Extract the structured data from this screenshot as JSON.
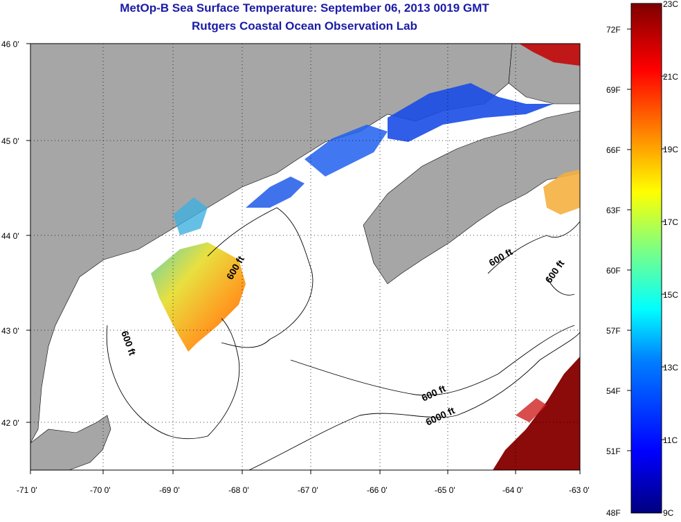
{
  "title": "MetOp-B Sea Surface Temperature:  September 06, 2013 0019 GMT",
  "subtitle": "Rutgers Coastal Ocean Observation Lab",
  "axes": {
    "x_ticks": [
      "-71 0'",
      "-70 0'",
      "-69 0'",
      "-68 0'",
      "-67 0'",
      "-66 0'",
      "-65 0'",
      "-64 0'",
      "-63 0'"
    ],
    "y_ticks": [
      "46 0'",
      "45 0'",
      "44 0'",
      "43 0'",
      "42 0'"
    ]
  },
  "contours": [
    "600 ft",
    "600 ft",
    "600 ft",
    "600 ft",
    "600 ft",
    "6000 ft"
  ],
  "colorbar": {
    "f_labels": [
      "72F",
      "69F",
      "66F",
      "63F",
      "60F",
      "57F",
      "54F",
      "51F",
      "48F"
    ],
    "c_labels": [
      "23C",
      "21C",
      "19C",
      "17C",
      "15C",
      "13C",
      "11C",
      "9C"
    ],
    "stops": [
      "#00007f",
      "#0000ff",
      "#0080ff",
      "#00ffff",
      "#80ff80",
      "#ffff00",
      "#ff8000",
      "#ff0000",
      "#7f0000"
    ]
  },
  "colors": {
    "land": "#a6a6a6",
    "water": "#ffffff",
    "title": "#1a1aa6"
  }
}
